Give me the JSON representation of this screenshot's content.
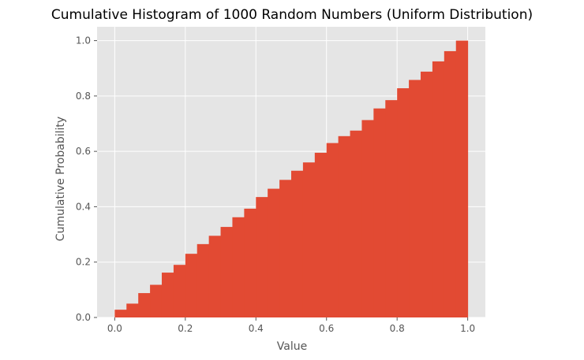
{
  "chart_data": {
    "type": "bar",
    "title": "Cumulative Histogram of 1000 Random Numbers (Uniform Distribution)",
    "xlabel": "Value",
    "ylabel": "Cumulative Probability",
    "xlim": [
      -0.05,
      1.05
    ],
    "ylim": [
      0.0,
      1.05
    ],
    "x_ticks": [
      0.0,
      0.2,
      0.4,
      0.6,
      0.8,
      1.0
    ],
    "y_ticks": [
      0.0,
      0.2,
      0.4,
      0.6,
      0.8,
      1.0
    ],
    "x_tick_labels": [
      "0.0",
      "0.2",
      "0.4",
      "0.6",
      "0.8",
      "1.0"
    ],
    "y_tick_labels": [
      "0.0",
      "0.2",
      "0.4",
      "0.6",
      "0.8",
      "1.0"
    ],
    "grid": true,
    "bin_edges": [
      0.0,
      0.0333,
      0.0667,
      0.1,
      0.1333,
      0.1667,
      0.2,
      0.2333,
      0.2667,
      0.3,
      0.3333,
      0.3667,
      0.4,
      0.4333,
      0.4667,
      0.5,
      0.5333,
      0.5667,
      0.6,
      0.6333,
      0.6667,
      0.7,
      0.7333,
      0.7667,
      0.8,
      0.8333,
      0.8667,
      0.9,
      0.9333,
      0.9667,
      1.0
    ],
    "values": [
      0.028,
      0.05,
      0.088,
      0.118,
      0.162,
      0.19,
      0.23,
      0.265,
      0.295,
      0.327,
      0.362,
      0.393,
      0.435,
      0.465,
      0.497,
      0.53,
      0.56,
      0.595,
      0.63,
      0.655,
      0.675,
      0.713,
      0.755,
      0.785,
      0.828,
      0.858,
      0.888,
      0.925,
      0.962,
      1.0
    ],
    "bar_color": "#E24A33",
    "background_color": "#E5E5E5",
    "grid_color": "#FFFFFF"
  }
}
